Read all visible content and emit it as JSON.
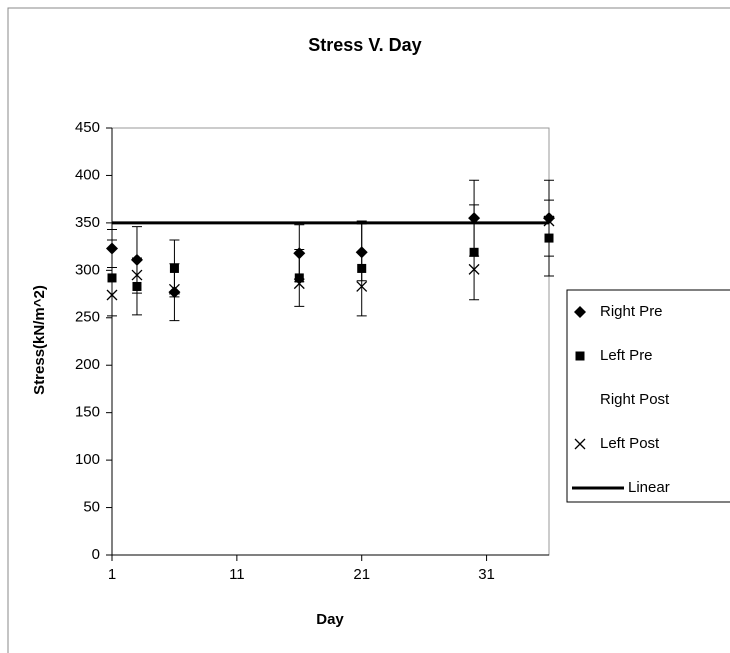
{
  "chart_data": {
    "type": "scatter",
    "title": "Stress V. Day",
    "xlabel": "Day",
    "ylabel": "Stress(kN/m^2)",
    "x": [
      1,
      3,
      6,
      16,
      21,
      30,
      36
    ],
    "series": [
      {
        "name": "Right Pre",
        "marker": "diamond",
        "color": "#000000",
        "values": [
          323,
          311,
          277,
          318,
          319,
          355,
          355
        ],
        "errors": [
          20,
          35,
          30,
          30,
          30,
          40,
          40
        ]
      },
      {
        "name": "Left Pre",
        "marker": "square",
        "color": "#000000",
        "values": [
          292,
          283,
          302,
          292,
          302,
          319,
          334
        ],
        "errors": [
          40,
          30,
          30,
          30,
          50,
          50,
          40
        ]
      },
      {
        "name": "Right Post",
        "marker": "none",
        "color": "#000000"
      },
      {
        "name": "Left Post",
        "marker": "x",
        "color": "#000000",
        "values": [
          274,
          295,
          280,
          286,
          283,
          301,
          352
        ]
      },
      {
        "name": "Linear",
        "marker": "line",
        "color": "#000000",
        "x": [
          1,
          36
        ],
        "values": [
          350,
          350
        ]
      }
    ],
    "xlim": [
      1,
      36
    ],
    "xticks": [
      1,
      11,
      21,
      31
    ],
    "ylim": [
      0,
      450
    ],
    "yticks": [
      0,
      50,
      100,
      150,
      200,
      250,
      300,
      350,
      400,
      450
    ],
    "legend": "right"
  }
}
